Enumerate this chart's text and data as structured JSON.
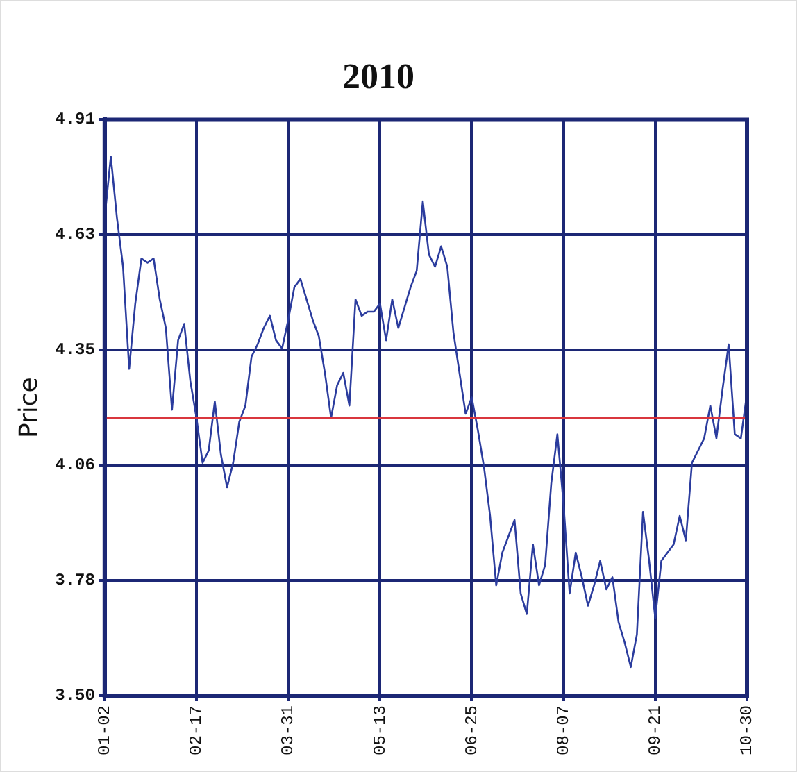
{
  "chart_data": {
    "type": "line",
    "title": "2010",
    "ylabel": "Price",
    "color": "#2b3c9e",
    "line_style": "solid",
    "grid": true,
    "categories": [
      "01-02",
      null,
      null,
      null,
      null,
      null,
      null,
      null,
      null,
      null,
      null,
      null,
      null,
      null,
      null,
      "02-17",
      null,
      null,
      null,
      null,
      null,
      null,
      null,
      null,
      null,
      null,
      null,
      null,
      null,
      null,
      "03-31",
      null,
      null,
      null,
      null,
      null,
      null,
      null,
      null,
      null,
      null,
      null,
      null,
      null,
      null,
      "05-13",
      null,
      null,
      null,
      null,
      null,
      null,
      null,
      null,
      null,
      null,
      null,
      null,
      null,
      null,
      "06-25",
      null,
      null,
      null,
      null,
      null,
      null,
      null,
      null,
      null,
      null,
      null,
      null,
      null,
      null,
      "08-07",
      null,
      null,
      null,
      null,
      null,
      null,
      null,
      null,
      null,
      null,
      null,
      null,
      null,
      null,
      "09-21",
      null,
      null,
      null,
      null,
      null,
      null,
      null,
      null,
      null,
      null,
      null,
      null,
      null,
      null,
      "10-30"
    ],
    "values": [
      4.67,
      4.82,
      4.67,
      4.55,
      4.3,
      4.46,
      4.57,
      4.56,
      4.57,
      4.47,
      4.4,
      4.2,
      4.37,
      4.41,
      4.27,
      4.18,
      4.07,
      4.1,
      4.22,
      4.09,
      4.01,
      4.07,
      4.17,
      4.21,
      4.33,
      4.36,
      4.4,
      4.43,
      4.37,
      4.35,
      4.42,
      4.5,
      4.52,
      4.47,
      4.42,
      4.38,
      4.29,
      4.18,
      4.26,
      4.29,
      4.21,
      4.47,
      4.43,
      4.44,
      4.44,
      4.46,
      4.37,
      4.47,
      4.4,
      4.45,
      4.5,
      4.54,
      4.71,
      4.58,
      4.55,
      4.6,
      4.55,
      4.39,
      4.29,
      4.19,
      4.23,
      4.15,
      4.06,
      3.94,
      3.77,
      3.85,
      3.89,
      3.93,
      3.75,
      3.7,
      3.87,
      3.77,
      3.82,
      4.02,
      4.14,
      3.97,
      3.75,
      3.85,
      3.79,
      3.72,
      3.77,
      3.83,
      3.76,
      3.79,
      3.68,
      3.63,
      3.57,
      3.65,
      3.95,
      3.83,
      3.69,
      3.83,
      3.85,
      3.87,
      3.94,
      3.88,
      4.07,
      4.1,
      4.13,
      4.21,
      4.13,
      4.25,
      4.36,
      4.14,
      4.13,
      4.24
    ],
    "ylim": [
      3.5,
      4.91
    ],
    "yticks": [
      {
        "value": 3.5,
        "label": "3.50"
      },
      {
        "value": 3.782,
        "label": "3.78"
      },
      {
        "value": 4.064,
        "label": "4.06"
      },
      {
        "value": 4.346,
        "label": "4.35"
      },
      {
        "value": 4.628,
        "label": "4.63"
      },
      4.91
    ],
    "ref_lines": [
      {
        "axis": "y",
        "value": 4.18,
        "color": "#d9363e"
      }
    ]
  }
}
